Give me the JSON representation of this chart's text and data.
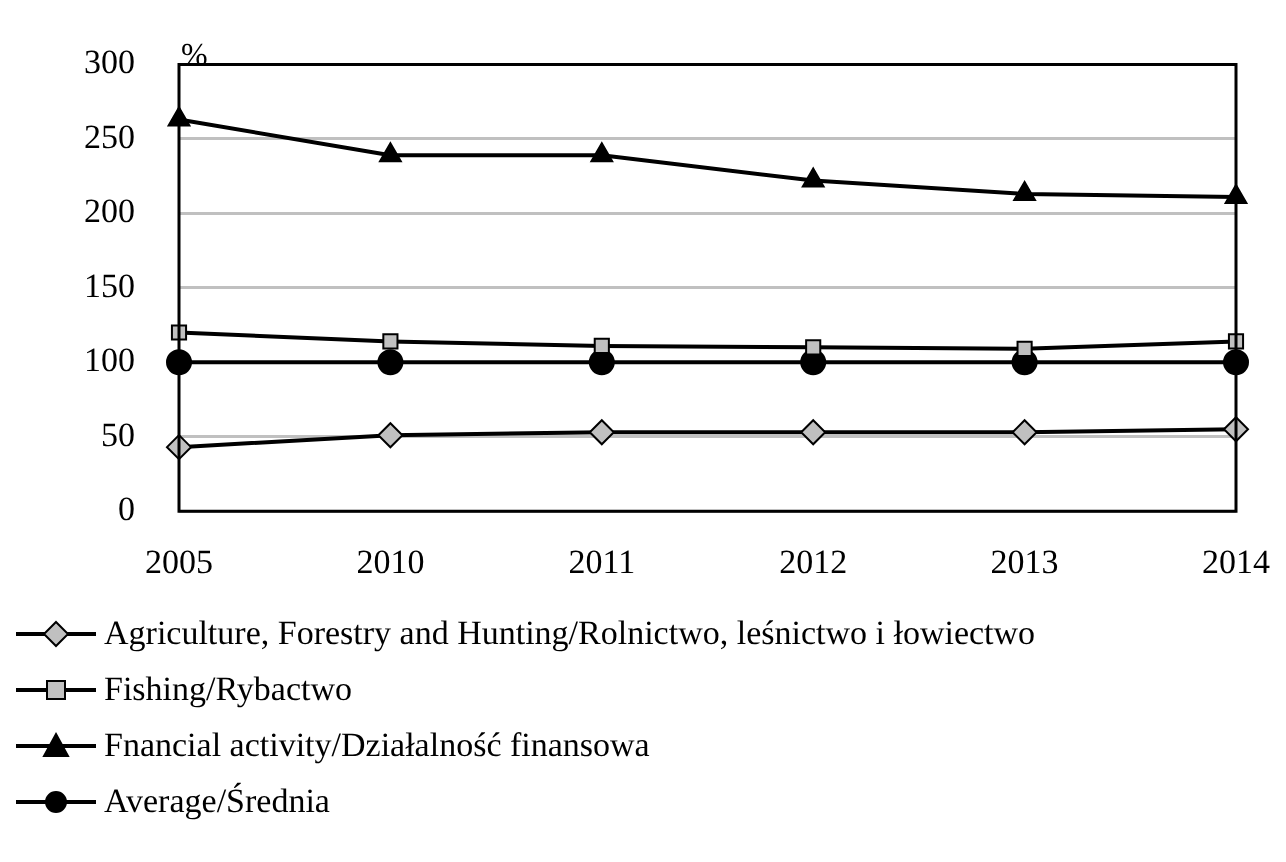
{
  "chart_data": {
    "type": "line",
    "ylabel": "%",
    "categories": [
      "2005",
      "2010",
      "2011",
      "2012",
      "2013",
      "2014"
    ],
    "ylim": [
      0,
      300
    ],
    "yticks": [
      0,
      50,
      100,
      150,
      200,
      250,
      300
    ],
    "grid": "y",
    "legend": "bottom",
    "line_style": "solid",
    "series": [
      {
        "name": "Agriculture, Forestry and Hunting/Rolnictwo, leśnictwo i łowiectwo",
        "color": "#c0c0c0",
        "marker": "diamond",
        "values": [
          43,
          51,
          53,
          53,
          53,
          55
        ]
      },
      {
        "name": "Fishing/Rybactwo",
        "color": "#c0c0c0",
        "marker": "square",
        "values": [
          120,
          114,
          111,
          110,
          109,
          114
        ]
      },
      {
        "name": "Fnancial activity/Działalność finansowa",
        "color": "#000000",
        "marker": "triangle",
        "values": [
          263,
          239,
          239,
          222,
          213,
          211
        ]
      },
      {
        "name": "Average/Średnia",
        "color": "#000000",
        "marker": "circle",
        "values": [
          100,
          100,
          100,
          100,
          100,
          100
        ]
      }
    ]
  }
}
